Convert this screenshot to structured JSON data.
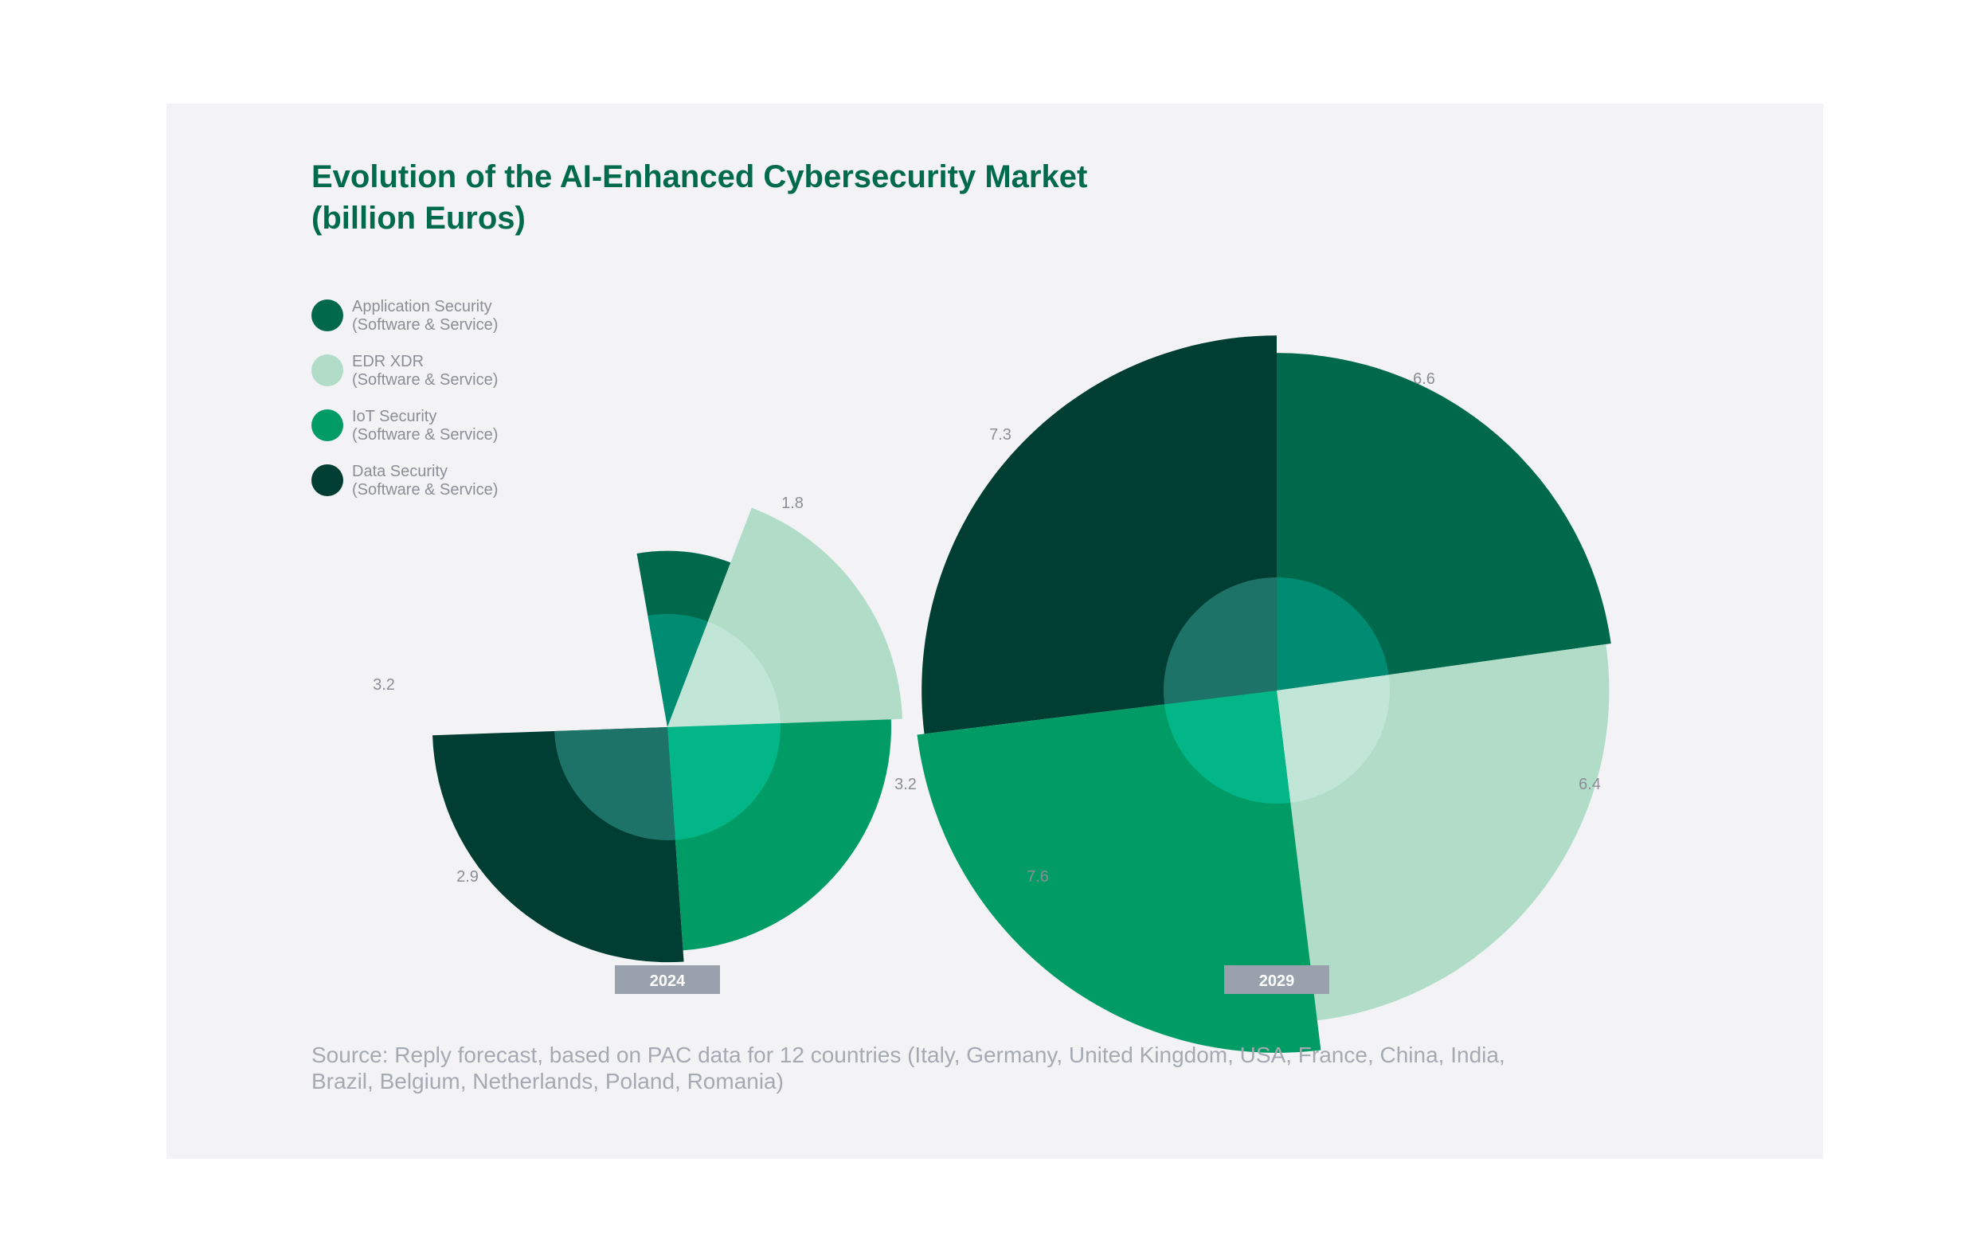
{
  "title": {
    "line1": "Evolution of the AI-Enhanced Cybersecurity Market",
    "line2": "(billion Euros)"
  },
  "legend": [
    {
      "line1": "Application Security",
      "line2": "(Software & Service)",
      "color": "#01694b"
    },
    {
      "line1": "EDR XDR",
      "line2": "(Software & Service)",
      "color": "#b1dcc8"
    },
    {
      "line1": "IoT Security",
      "line2": "(Software & Service)",
      "color": "#019c65"
    },
    {
      "line1": "Data Security",
      "line2": "(Software & Service)",
      "color": "#003d32"
    }
  ],
  "chart_data": [
    {
      "type": "polar-area",
      "label": "2024",
      "categories": [
        "Application Security (Software & Service)",
        "EDR XDR (Software & Service)",
        "IoT Security (Software & Service)",
        "Data Security (Software & Service)"
      ],
      "values": [
        1.8,
        3.2,
        2.9,
        3.2
      ]
    },
    {
      "type": "polar-area",
      "label": "2029",
      "categories": [
        "Application Security (Software & Service)",
        "EDR XDR (Software & Service)",
        "IoT Security (Software & Service)",
        "Data Security (Software & Service)"
      ],
      "values": [
        6.6,
        6.4,
        7.6,
        7.3
      ]
    }
  ],
  "colors": {
    "outer": [
      "#01694b",
      "#b1dcc8",
      "#019c65",
      "#003d32"
    ],
    "inner": [
      "#008c72",
      "#c1e5d7",
      "#02b687",
      "#1e7368"
    ],
    "year_badge": "#98a1ac",
    "label_text": "#8b8e96"
  },
  "source": {
    "line1": "Source: Reply forecast, based on PAC data for 12 countries (Italy, Germany, United Kingdom, USA, France, China, India,",
    "line2": "Brazil, Belgium, Netherlands, Poland, Romania)"
  }
}
